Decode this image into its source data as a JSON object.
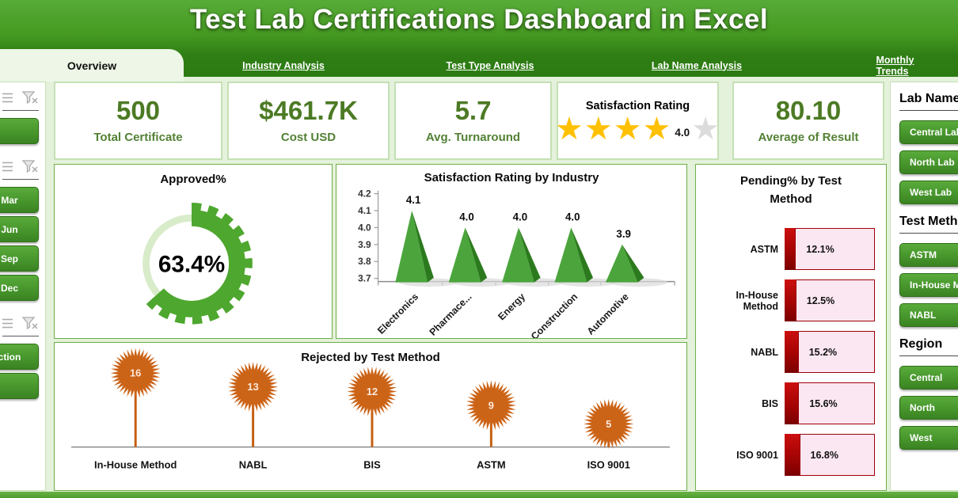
{
  "page": {
    "title": "Test Lab Certifications Dashboard in Excel"
  },
  "tabs": [
    {
      "label": "Overview",
      "active": true
    },
    {
      "label": "Industry Analysis",
      "active": false
    },
    {
      "label": "Test Type Analysis",
      "active": false
    },
    {
      "label": "Lab Name Analysis",
      "active": false
    },
    {
      "label": "Monthly Trends",
      "active": false
    }
  ],
  "kpis": {
    "total_certificate": {
      "value": "500",
      "label": "Total Certificate"
    },
    "cost": {
      "value": "$461.7K",
      "label": "Cost USD"
    },
    "turnaround": {
      "value": "5.7",
      "label": "Avg. Turnaround"
    },
    "satisfaction": {
      "title": "Satisfaction Rating",
      "value": "4.0",
      "stars_filled": 4,
      "stars_total": 5
    },
    "result": {
      "value": "80.10",
      "label": "Average of Result"
    }
  },
  "left_slicers": [
    {
      "buttons": [
        ""
      ]
    },
    {
      "buttons": [
        "Mar",
        "Jun",
        "Sep",
        "Dec"
      ]
    },
    {
      "buttons": [
        "ction",
        ""
      ]
    }
  ],
  "right_slicers": [
    {
      "title": "Lab Name",
      "buttons": [
        "Central Lab",
        "North Lab",
        "West Lab"
      ]
    },
    {
      "title": "Test Meth",
      "buttons": [
        "ASTM",
        "In-House M",
        "NABL"
      ]
    },
    {
      "title": "Region",
      "buttons": [
        "Central",
        "North",
        "West"
      ]
    }
  ],
  "chart_data": [
    {
      "type": "donut",
      "subtype": "gear-gauge",
      "title": "Approved%",
      "value": 63.4,
      "label": "63.4%",
      "color": "#4EA72E",
      "track_color": "#D8ECCA"
    },
    {
      "type": "bar",
      "subtype": "pyramid-3d",
      "title": "Satisfaction Rating by Industry",
      "categories": [
        "Electronics",
        "Pharmace...",
        "Energy",
        "Construction",
        "Automotive"
      ],
      "values": [
        4.1,
        4.0,
        4.0,
        4.0,
        3.9
      ],
      "data_labels": [
        "4.1",
        "4.0",
        "4.0",
        "4.0",
        "3.9"
      ],
      "ylim": [
        3.7,
        4.2
      ],
      "yticks": [
        "4.2",
        "4.1",
        "4.0",
        "3.9",
        "3.8",
        "3.7"
      ],
      "bar_color": "#4BA53C",
      "bar_side_color": "#2C7A1E",
      "grid": false,
      "legend": "none"
    },
    {
      "type": "bar",
      "subtype": "horizontal-progress",
      "title": "Pending% by Test Method",
      "categories": [
        "ASTM",
        "In-House Method",
        "NABL",
        "BIS",
        "ISO 9001"
      ],
      "values": [
        12.1,
        12.5,
        15.2,
        15.6,
        16.8
      ],
      "data_labels": [
        "12.1%",
        "12.5%",
        "15.2%",
        "15.6%",
        "16.8%"
      ],
      "bar_color": "#C00000",
      "track_color": "#FBE7F1",
      "xlim": [
        0,
        100
      ]
    },
    {
      "type": "lollipop",
      "title": "Rejected by Test Method",
      "categories": [
        "In-House Method",
        "NABL",
        "BIS",
        "ASTM",
        "ISO 9001"
      ],
      "values": [
        16,
        13,
        12,
        9,
        5
      ],
      "data_labels": [
        "16",
        "13",
        "12",
        "9",
        "5"
      ],
      "marker_color": "#CC6418",
      "stem_color": "#C55F11"
    }
  ],
  "colors": {
    "page_background": "#E4F1DB",
    "banner_green_top": "#57AB38",
    "banner_green_bottom": "#2B7A12",
    "panel_border": "#6FAE46",
    "card_border": "#C5E0B4",
    "kpi_text": "#4C7A24",
    "slicer_button_green": "#4A9A2F",
    "star_gold": "#FFC000",
    "pending_red": "#C00000",
    "pending_pink": "#FBE7F1",
    "rejected_orange": "#CC6418"
  }
}
